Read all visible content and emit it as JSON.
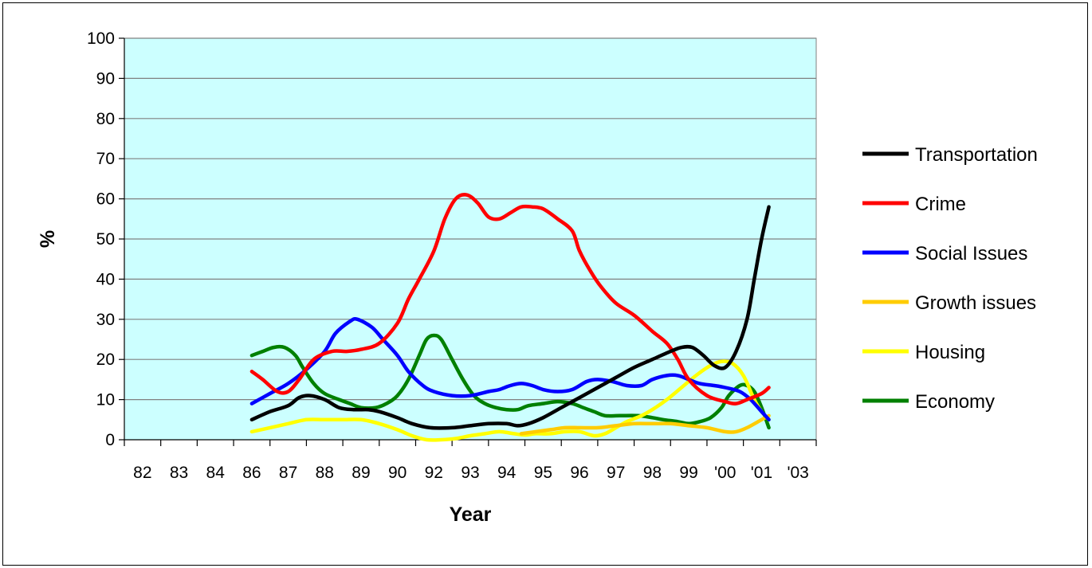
{
  "chart_data": {
    "type": "line",
    "xlabel": "Year",
    "ylabel": "%",
    "ylim": [
      0,
      100
    ],
    "y_ticks": [
      0,
      10,
      20,
      30,
      40,
      50,
      60,
      70,
      80,
      90,
      100
    ],
    "categories": [
      "82",
      "83",
      "84",
      "86",
      "87",
      "88",
      "89",
      "90",
      "92",
      "93",
      "94",
      "95",
      "96",
      "97",
      "98",
      "99",
      "'00",
      "'01",
      "'03"
    ],
    "plot_background": "#ccffff",
    "grid": true,
    "legend_position": "right",
    "series": [
      {
        "name": "Transportation",
        "color": "#000000",
        "points": [
          [
            3,
            5
          ],
          [
            3.5,
            7
          ],
          [
            4,
            8.5
          ],
          [
            4.3,
            10.5
          ],
          [
            4.6,
            11
          ],
          [
            5,
            10
          ],
          [
            5.4,
            8
          ],
          [
            5.8,
            7.5
          ],
          [
            6.2,
            7.5
          ],
          [
            6.5,
            7
          ],
          [
            7,
            5.5
          ],
          [
            7.4,
            4
          ],
          [
            7.9,
            3
          ],
          [
            8.5,
            3
          ],
          [
            9,
            3.5
          ],
          [
            9.5,
            4
          ],
          [
            10,
            4
          ],
          [
            10.3,
            3.5
          ],
          [
            10.6,
            4
          ],
          [
            11,
            5.5
          ],
          [
            11.5,
            8
          ],
          [
            12,
            10.5
          ],
          [
            12.5,
            13
          ],
          [
            13,
            15.5
          ],
          [
            13.5,
            18
          ],
          [
            14,
            20
          ],
          [
            14.5,
            22
          ],
          [
            14.8,
            23
          ],
          [
            15.1,
            23
          ],
          [
            15.4,
            21
          ],
          [
            15.7,
            18.5
          ],
          [
            16,
            18
          ],
          [
            16.3,
            22
          ],
          [
            16.6,
            30
          ],
          [
            16.8,
            40
          ],
          [
            17,
            50
          ],
          [
            17.2,
            58
          ]
        ]
      },
      {
        "name": "Crime",
        "color": "#ff0000",
        "points": [
          [
            3,
            17
          ],
          [
            3.3,
            15
          ],
          [
            3.7,
            12
          ],
          [
            4,
            12
          ],
          [
            4.3,
            15
          ],
          [
            4.7,
            20
          ],
          [
            5.2,
            22
          ],
          [
            5.6,
            22
          ],
          [
            6,
            22.5
          ],
          [
            6.5,
            24
          ],
          [
            7,
            29
          ],
          [
            7.3,
            35
          ],
          [
            7.6,
            40
          ],
          [
            8,
            47
          ],
          [
            8.3,
            55
          ],
          [
            8.6,
            60
          ],
          [
            8.9,
            61
          ],
          [
            9.2,
            59
          ],
          [
            9.5,
            55.5
          ],
          [
            9.8,
            55
          ],
          [
            10.1,
            56.5
          ],
          [
            10.4,
            58
          ],
          [
            10.7,
            58
          ],
          [
            11,
            57.5
          ],
          [
            11.4,
            55
          ],
          [
            11.8,
            52
          ],
          [
            12,
            47
          ],
          [
            12.3,
            42
          ],
          [
            12.6,
            38
          ],
          [
            13,
            34
          ],
          [
            13.5,
            31
          ],
          [
            14,
            27
          ],
          [
            14.4,
            24
          ],
          [
            14.7,
            20
          ],
          [
            15,
            15
          ],
          [
            15.5,
            11
          ],
          [
            16,
            9.5
          ],
          [
            16.3,
            9
          ],
          [
            16.6,
            10
          ],
          [
            17,
            11.5
          ],
          [
            17.2,
            13
          ]
        ]
      },
      {
        "name": "Social Issues",
        "color": "#0000ff",
        "points": [
          [
            3,
            9
          ],
          [
            3.5,
            11.5
          ],
          [
            4,
            14
          ],
          [
            4.5,
            17.5
          ],
          [
            5,
            22
          ],
          [
            5.3,
            26.5
          ],
          [
            5.7,
            29.5
          ],
          [
            5.9,
            30
          ],
          [
            6.3,
            28
          ],
          [
            6.6,
            25
          ],
          [
            7,
            21
          ],
          [
            7.3,
            17
          ],
          [
            7.7,
            13.5
          ],
          [
            8,
            12
          ],
          [
            8.5,
            11
          ],
          [
            9,
            11
          ],
          [
            9.5,
            12
          ],
          [
            9.8,
            12.5
          ],
          [
            10.1,
            13.5
          ],
          [
            10.4,
            14
          ],
          [
            10.7,
            13.5
          ],
          [
            11,
            12.5
          ],
          [
            11.4,
            12
          ],
          [
            11.8,
            12.5
          ],
          [
            12.2,
            14.5
          ],
          [
            12.5,
            15
          ],
          [
            12.9,
            14.5
          ],
          [
            13.3,
            13.5
          ],
          [
            13.7,
            13.5
          ],
          [
            14,
            15
          ],
          [
            14.4,
            16
          ],
          [
            14.7,
            16
          ],
          [
            15,
            15
          ],
          [
            15.3,
            14
          ],
          [
            15.7,
            13.5
          ],
          [
            16,
            13
          ],
          [
            16.4,
            12
          ],
          [
            16.7,
            10
          ],
          [
            17,
            7
          ],
          [
            17.2,
            5
          ]
        ]
      },
      {
        "name": "Growth issues",
        "color": "#ffcc00",
        "points": [
          [
            10.4,
            1.5
          ],
          [
            10.8,
            2
          ],
          [
            11.2,
            2.5
          ],
          [
            11.6,
            3
          ],
          [
            12,
            3
          ],
          [
            12.5,
            3
          ],
          [
            13,
            3.5
          ],
          [
            13.5,
            4
          ],
          [
            14,
            4
          ],
          [
            14.5,
            4
          ],
          [
            15,
            3.5
          ],
          [
            15.5,
            3
          ],
          [
            16,
            2
          ],
          [
            16.3,
            2
          ],
          [
            16.6,
            3
          ],
          [
            17,
            5
          ],
          [
            17.2,
            6
          ]
        ]
      },
      {
        "name": "Housing",
        "color": "#ffff00",
        "points": [
          [
            3,
            2
          ],
          [
            3.5,
            3
          ],
          [
            4,
            4
          ],
          [
            4.5,
            5
          ],
          [
            5,
            5
          ],
          [
            5.5,
            5
          ],
          [
            6,
            5
          ],
          [
            6.5,
            4
          ],
          [
            7,
            2.5
          ],
          [
            7.4,
            1
          ],
          [
            7.8,
            0
          ],
          [
            8.2,
            0
          ],
          [
            8.6,
            0.3
          ],
          [
            9,
            1
          ],
          [
            9.4,
            1.5
          ],
          [
            9.8,
            2
          ],
          [
            10.2,
            1.5
          ],
          [
            10.5,
            1.2
          ],
          [
            10.8,
            1.5
          ],
          [
            11.2,
            1.5
          ],
          [
            11.6,
            2
          ],
          [
            12,
            2
          ],
          [
            12.4,
            1
          ],
          [
            12.7,
            1.5
          ],
          [
            13,
            3
          ],
          [
            13.3,
            4.5
          ],
          [
            13.7,
            6
          ],
          [
            14,
            7.5
          ],
          [
            14.4,
            10
          ],
          [
            14.8,
            13
          ],
          [
            15.2,
            16
          ],
          [
            15.6,
            18.5
          ],
          [
            15.9,
            19.5
          ],
          [
            16.2,
            19
          ],
          [
            16.5,
            16
          ],
          [
            16.8,
            10
          ],
          [
            17,
            7
          ],
          [
            17.2,
            5
          ]
        ]
      },
      {
        "name": "Economy",
        "color": "#008000",
        "points": [
          [
            3,
            21
          ],
          [
            3.3,
            22
          ],
          [
            3.6,
            23
          ],
          [
            3.9,
            23
          ],
          [
            4.2,
            21
          ],
          [
            4.4,
            18
          ],
          [
            4.7,
            14
          ],
          [
            5,
            11.5
          ],
          [
            5.4,
            10
          ],
          [
            5.7,
            9
          ],
          [
            6,
            8
          ],
          [
            6.4,
            8
          ],
          [
            6.7,
            9
          ],
          [
            7,
            11
          ],
          [
            7.3,
            15
          ],
          [
            7.6,
            21
          ],
          [
            7.8,
            25
          ],
          [
            8,
            26
          ],
          [
            8.2,
            25
          ],
          [
            8.5,
            20
          ],
          [
            8.8,
            15
          ],
          [
            9.1,
            11
          ],
          [
            9.4,
            9
          ],
          [
            9.7,
            8
          ],
          [
            10,
            7.5
          ],
          [
            10.3,
            7.5
          ],
          [
            10.6,
            8.5
          ],
          [
            11,
            9
          ],
          [
            11.4,
            9.5
          ],
          [
            11.8,
            9
          ],
          [
            12.1,
            8
          ],
          [
            12.4,
            7
          ],
          [
            12.7,
            6
          ],
          [
            13.1,
            6
          ],
          [
            13.6,
            6
          ],
          [
            14,
            5.5
          ],
          [
            14.3,
            5
          ],
          [
            14.7,
            4.5
          ],
          [
            15,
            4
          ],
          [
            15.3,
            4.5
          ],
          [
            15.6,
            5.5
          ],
          [
            15.9,
            8
          ],
          [
            16.1,
            11
          ],
          [
            16.4,
            13.5
          ],
          [
            16.6,
            13.5
          ],
          [
            16.8,
            12
          ],
          [
            17,
            8
          ],
          [
            17.2,
            3
          ]
        ]
      }
    ]
  }
}
